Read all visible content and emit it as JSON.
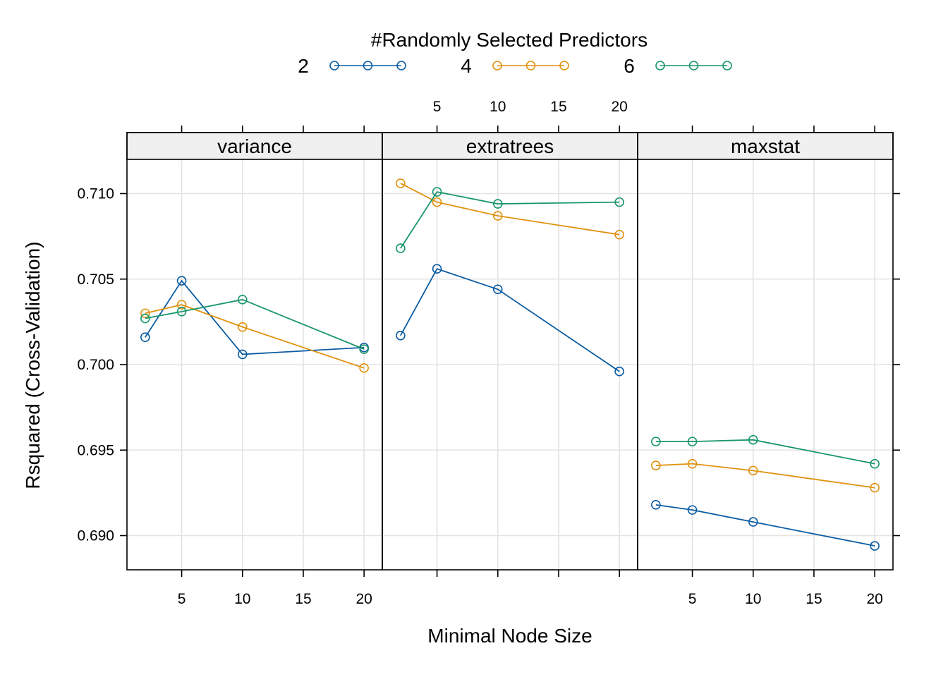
{
  "chart_data": {
    "type": "line",
    "x_values": [
      2,
      5,
      10,
      20
    ],
    "xlabel": "Minimal Node Size",
    "ylabel": "Rsquared (Cross-Validation)",
    "legend": {
      "title": "#Randomly Selected Predictors",
      "placement": "top"
    },
    "series_styles": [
      {
        "name": "2",
        "color": "#0b5ca3"
      },
      {
        "name": "4",
        "color": "#e0920f"
      },
      {
        "name": "6",
        "color": "#17956b"
      }
    ],
    "xlim": [
      0.5,
      21.5
    ],
    "ylim": [
      0.688,
      0.712
    ],
    "x_ticks": [
      5,
      10,
      15,
      20
    ],
    "y_ticks": [
      0.69,
      0.695,
      0.7,
      0.705,
      0.71
    ],
    "y_tick_labels": [
      "0.690",
      "0.695",
      "0.700",
      "0.705",
      "0.710"
    ],
    "grid": true,
    "panels": [
      {
        "strip": "variance",
        "series": [
          {
            "name": "2",
            "values": [
              0.7016,
              0.7049,
              0.7006,
              0.701
            ]
          },
          {
            "name": "4",
            "values": [
              0.703,
              0.7035,
              0.7022,
              0.6998
            ]
          },
          {
            "name": "6",
            "values": [
              0.7027,
              0.7031,
              0.7038,
              0.7009
            ]
          }
        ]
      },
      {
        "strip": "extratrees",
        "series": [
          {
            "name": "2",
            "values": [
              0.7017,
              0.7056,
              0.7044,
              0.6996
            ]
          },
          {
            "name": "4",
            "values": [
              0.7106,
              0.7095,
              0.7087,
              0.7076
            ]
          },
          {
            "name": "6",
            "values": [
              0.7068,
              0.7101,
              0.7094,
              0.7095
            ]
          }
        ]
      },
      {
        "strip": "maxstat",
        "series": [
          {
            "name": "2",
            "values": [
              0.6918,
              0.6915,
              0.6908,
              0.6894
            ]
          },
          {
            "name": "4",
            "values": [
              0.6941,
              0.6942,
              0.6938,
              0.6928
            ]
          },
          {
            "name": "6",
            "values": [
              0.6955,
              0.6955,
              0.6956,
              0.6942
            ]
          }
        ]
      }
    ]
  }
}
